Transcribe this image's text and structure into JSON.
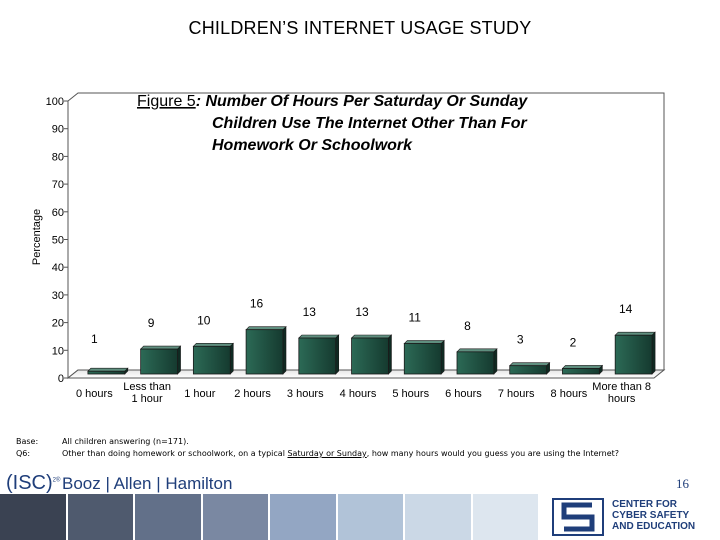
{
  "slide_title": "CHILDREN’S INTERNET USAGE STUDY",
  "chart_data": {
    "type": "bar",
    "title_prefix": "Figure 5",
    "title_rest_lines": [
      ": Number Of Hours Per Saturday Or Sunday",
      "Children Use The Internet Other Than For",
      "Homework Or Schoolwork"
    ],
    "ylabel": "Percentage",
    "xlabel": "",
    "ylim": [
      0,
      100
    ],
    "yticks": [
      "0",
      "10",
      "20",
      "30",
      "40",
      "50",
      "60",
      "70",
      "80",
      "90",
      "100"
    ],
    "categories": [
      "0 hours",
      "Less than 1 hour",
      "1 hour",
      "2 hours",
      "3 hours",
      "4 hours",
      "5 hours",
      "6 hours",
      "7 hours",
      "8 hours",
      "More than 8 hours"
    ],
    "values": [
      1,
      9,
      10,
      16,
      13,
      13,
      11,
      8,
      3,
      2,
      14
    ],
    "data_labels": [
      "1",
      "9",
      "10",
      "16",
      "13",
      "13",
      "11",
      "8",
      "3",
      "2",
      "14"
    ],
    "grid": false,
    "bar_color": "#1d4a3c"
  },
  "notes": {
    "base_label": "Base:",
    "base_text": "All children answering (n=171).",
    "q_label": "Q6:",
    "q_text_before": "Other than doing homework or schoolwork, on a typical ",
    "q_text_underlined": "Saturday or Sunday",
    "q_text_after": ", how many hours would you guess you are using the Internet?"
  },
  "branding": {
    "isc": "(ISC)",
    "isc_sup": "2®",
    "booz_allen": "Booz | Allen | Hamilton",
    "center_line1": "CENTER FOR",
    "center_line2": "CYBER SAFETY",
    "center_line3": "AND EDUCATION"
  },
  "page_number": "16",
  "colors": {
    "strip": [
      "#3a4252",
      "#4f5a6e",
      "#627089",
      "#7a88a2",
      "#93a6c3",
      "#b1c3d8",
      "#cbd8e6",
      "#dde6ef"
    ],
    "accent": "#1f3e7a"
  }
}
